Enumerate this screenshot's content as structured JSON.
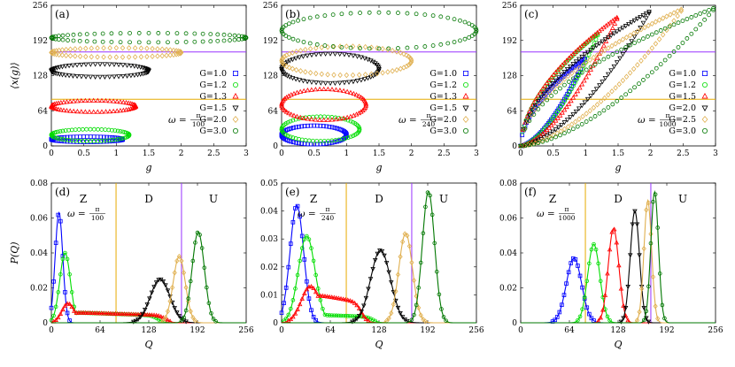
{
  "chart_data": [
    {
      "type": "scatter",
      "panel_label": "(a)",
      "xlabel": "g",
      "ylabel": "⟨x(g)⟩",
      "xlim": [
        0,
        3
      ],
      "ylim": [
        0,
        256
      ],
      "xticks": [
        "0",
        "0.5",
        "1",
        "1.5",
        "2",
        "2.5",
        "3"
      ],
      "yticks": [
        "0",
        "64",
        "128",
        "192",
        "256"
      ],
      "hlines": [
        {
          "y": 85,
          "color": "#e6ab02"
        },
        {
          "y": 171,
          "color": "#9933ff"
        }
      ],
      "omega": {
        "prefix": "ω =",
        "num": "π",
        "den": "100"
      },
      "legend_position": "right",
      "series": [
        {
          "name": "G=1.0",
          "color": "#0000ff",
          "marker": "square",
          "Gmax": 1.0,
          "cx": 0.55,
          "cy": 12,
          "rx": 0.55,
          "ry": 5,
          "lowfrac": 0.5
        },
        {
          "name": "G=1.2",
          "color": "#00dd00",
          "marker": "circle",
          "Gmax": 1.2,
          "cx": 0.6,
          "cy": 20,
          "rx": 0.6,
          "ry": 11,
          "lowfrac": 0.55
        },
        {
          "name": "G=1.3",
          "color": "#ff0000",
          "marker": "triangle",
          "Gmax": 1.3,
          "cx": 0.65,
          "cy": 72,
          "rx": 0.65,
          "ry": 11,
          "lowfrac": 0.5
        },
        {
          "name": "G=1.5",
          "color": "#000000",
          "marker": "triangle-down",
          "Gmax": 1.5,
          "cx": 0.75,
          "cy": 137,
          "rx": 0.75,
          "ry": 13,
          "lowfrac": 0.45
        },
        {
          "name": "G=2.0",
          "color": "#e0b050",
          "marker": "diamond",
          "Gmax": 2.0,
          "cx": 1.0,
          "cy": 170,
          "rx": 1.0,
          "ry": 9,
          "lowfrac": 0.5
        },
        {
          "name": "G=3.0",
          "color": "#007700",
          "marker": "circle",
          "Gmax": 3.0,
          "cx": 1.5,
          "cy": 197,
          "rx": 1.5,
          "ry": 9,
          "lowfrac": 0.5
        }
      ]
    },
    {
      "type": "scatter",
      "panel_label": "(b)",
      "xlabel": "g",
      "ylabel": "",
      "xlim": [
        0,
        3
      ],
      "ylim": [
        0,
        256
      ],
      "xticks": [
        "0",
        "0.5",
        "1",
        "1.5",
        "2",
        "2.5",
        "3"
      ],
      "yticks": [
        "0",
        "64",
        "128",
        "192",
        "256"
      ],
      "hlines": [
        {
          "y": 85,
          "color": "#e6ab02"
        },
        {
          "y": 171,
          "color": "#9933ff"
        }
      ],
      "omega": {
        "prefix": "ω =",
        "num": "π",
        "den": "240"
      },
      "legend_position": "right",
      "series": [
        {
          "name": "G=1.0",
          "color": "#0000ff",
          "marker": "square",
          "Gmax": 1.0,
          "cx": 0.5,
          "cy": 20,
          "rx": 0.5,
          "ry": 18,
          "lowfrac": 0.5
        },
        {
          "name": "G=1.2",
          "color": "#00dd00",
          "marker": "circle",
          "Gmax": 1.2,
          "cx": 0.6,
          "cy": 30,
          "rx": 0.6,
          "ry": 25,
          "lowfrac": 0.45
        },
        {
          "name": "G=1.3",
          "color": "#ff0000",
          "marker": "triangle",
          "Gmax": 1.3,
          "cx": 0.65,
          "cy": 75,
          "rx": 0.65,
          "ry": 30,
          "lowfrac": 0.5
        },
        {
          "name": "G=1.5",
          "color": "#000000",
          "marker": "triangle-down",
          "Gmax": 1.5,
          "cx": 0.75,
          "cy": 140,
          "rx": 0.75,
          "ry": 30,
          "lowfrac": 0.45
        },
        {
          "name": "G=2.0",
          "color": "#e0b050",
          "marker": "diamond",
          "Gmax": 2.0,
          "cx": 1.0,
          "cy": 155,
          "rx": 1.0,
          "ry": 28,
          "lowfrac": 0.5
        },
        {
          "name": "G=3.0",
          "color": "#007700",
          "marker": "circle",
          "Gmax": 3.0,
          "cx": 1.5,
          "cy": 210,
          "rx": 1.5,
          "ry": 35,
          "lowfrac": 0.5
        }
      ]
    },
    {
      "type": "scatter",
      "panel_label": "(c)",
      "xlabel": "g",
      "ylabel": "",
      "xlim": [
        0,
        3
      ],
      "ylim": [
        0,
        256
      ],
      "xticks": [
        "0",
        "0.5",
        "1",
        "1.5",
        "2",
        "2.5",
        "3"
      ],
      "yticks": [
        "0",
        "64",
        "128",
        "192",
        "256"
      ],
      "hlines": [
        {
          "y": 85,
          "color": "#e6ab02"
        },
        {
          "y": 171,
          "color": "#9933ff"
        }
      ],
      "omega": {
        "prefix": "ω =",
        "num": "π",
        "den": "1000"
      },
      "legend_position": "right",
      "series": [
        {
          "name": "G=1.0",
          "color": "#0000ff",
          "marker": "square",
          "Gmax": 1.0,
          "peak": 160
        },
        {
          "name": "G=1.2",
          "color": "#00dd00",
          "marker": "circle",
          "Gmax": 1.2,
          "peak": 205
        },
        {
          "name": "G=1.5",
          "color": "#ff0000",
          "marker": "triangle",
          "Gmax": 1.5,
          "peak": 235
        },
        {
          "name": "G=2.0",
          "color": "#000000",
          "marker": "triangle-down",
          "Gmax": 2.0,
          "peak": 246
        },
        {
          "name": "G=2.5",
          "color": "#e0b050",
          "marker": "diamond",
          "Gmax": 2.5,
          "peak": 250
        },
        {
          "name": "G=3.0",
          "color": "#007700",
          "marker": "circle",
          "Gmax": 3.0,
          "peak": 252
        }
      ]
    },
    {
      "type": "line",
      "panel_label": "(d)",
      "xlabel": "Q",
      "ylabel": "P(Q)",
      "xlim": [
        0,
        256
      ],
      "ylim": [
        0,
        0.08
      ],
      "xticks": [
        "0",
        "64",
        "128",
        "192",
        "256"
      ],
      "yticks": [
        "0",
        "0.02",
        "0.04",
        "0.06",
        "0.08"
      ],
      "vlines": [
        {
          "x": 85,
          "color": "#e6ab02"
        },
        {
          "x": 171,
          "color": "#9933ff"
        }
      ],
      "regions": [
        {
          "label": "Z",
          "x": 42
        },
        {
          "label": "D",
          "x": 128
        },
        {
          "label": "U",
          "x": 213
        }
      ],
      "omega": {
        "prefix": "ω =",
        "num": "π",
        "den": "100"
      },
      "series": [
        {
          "color": "#0000ff",
          "marker": "square",
          "peaks": [
            [
              10,
              0.063,
              5
            ]
          ]
        },
        {
          "color": "#00dd00",
          "marker": "circle",
          "peaks": [
            [
              18,
              0.04,
              7
            ]
          ],
          "plateau": [
            20,
            140,
            0.006
          ]
        },
        {
          "color": "#ff0000",
          "marker": "triangle",
          "peaks": [
            [
              22,
              0.011,
              8
            ]
          ],
          "plateau": [
            20,
            150,
            0.006
          ]
        },
        {
          "color": "#000000",
          "marker": "triangle-down",
          "peaks": [
            [
              143,
              0.025,
              13
            ]
          ]
        },
        {
          "color": "#e0b050",
          "marker": "diamond",
          "peaks": [
            [
              168,
              0.038,
              8
            ]
          ]
        },
        {
          "color": "#007700",
          "marker": "circle",
          "peaks": [
            [
              193,
              0.052,
              8
            ]
          ]
        }
      ]
    },
    {
      "type": "line",
      "panel_label": "(e)",
      "xlabel": "Q",
      "ylabel": "",
      "xlim": [
        0,
        256
      ],
      "ylim": [
        0,
        0.05
      ],
      "xticks": [
        "0",
        "64",
        "128",
        "192",
        "256"
      ],
      "yticks": [
        "0",
        "0.01",
        "0.02",
        "0.03",
        "0.04",
        "0.05"
      ],
      "vlines": [
        {
          "x": 85,
          "color": "#e6ab02"
        },
        {
          "x": 171,
          "color": "#9933ff"
        }
      ],
      "regions": [
        {
          "label": "Z",
          "x": 42
        },
        {
          "label": "D",
          "x": 128
        },
        {
          "label": "U",
          "x": 213
        }
      ],
      "omega": {
        "prefix": "ω =",
        "num": "π",
        "den": "240"
      },
      "series": [
        {
          "color": "#0000ff",
          "marker": "square",
          "peaks": [
            [
              20,
              0.042,
              9
            ]
          ]
        },
        {
          "color": "#00dd00",
          "marker": "circle",
          "peaks": [
            [
              33,
              0.031,
              11
            ]
          ],
          "plateau": [
            30,
            120,
            0.003
          ]
        },
        {
          "color": "#ff0000",
          "marker": "triangle",
          "peaks": [
            [
              38,
              0.013,
              12
            ]
          ],
          "plateau": [
            35,
            105,
            0.0105
          ]
        },
        {
          "color": "#000000",
          "marker": "triangle-down",
          "peaks": [
            [
              130,
              0.026,
              13
            ]
          ]
        },
        {
          "color": "#e0b050",
          "marker": "diamond",
          "peaks": [
            [
              163,
              0.032,
              9
            ]
          ]
        },
        {
          "color": "#007700",
          "marker": "circle",
          "peaks": [
            [
              193,
              0.047,
              8
            ]
          ]
        }
      ]
    },
    {
      "type": "line",
      "panel_label": "(f)",
      "xlabel": "Q",
      "ylabel": "",
      "xlim": [
        0,
        256
      ],
      "ylim": [
        0,
        0.08
      ],
      "xticks": [
        "0",
        "64",
        "128",
        "192",
        "256"
      ],
      "yticks": [
        "0",
        "0.02",
        "0.04",
        "0.06",
        "0.08"
      ],
      "vlines": [
        {
          "x": 85,
          "color": "#e6ab02"
        },
        {
          "x": 171,
          "color": "#9933ff"
        }
      ],
      "regions": [
        {
          "label": "Z",
          "x": 42
        },
        {
          "label": "D",
          "x": 128
        },
        {
          "label": "U",
          "x": 213
        }
      ],
      "omega": {
        "prefix": "ω =",
        "num": "π",
        "den": "1000"
      },
      "series": [
        {
          "color": "#0000ff",
          "marker": "square",
          "peaks": [
            [
              70,
              0.037,
              10
            ]
          ]
        },
        {
          "color": "#00dd00",
          "marker": "circle",
          "peaks": [
            [
              96,
              0.045,
              8
            ]
          ]
        },
        {
          "color": "#ff0000",
          "marker": "triangle",
          "peaks": [
            [
              122,
              0.054,
              7
            ]
          ]
        },
        {
          "color": "#000000",
          "marker": "triangle-down",
          "peaks": [
            [
              150,
              0.064,
              6
            ]
          ]
        },
        {
          "color": "#e0b050",
          "marker": "diamond",
          "peaks": [
            [
              167,
              0.07,
              5
            ]
          ]
        },
        {
          "color": "#007700",
          "marker": "circle",
          "peaks": [
            [
              176,
              0.075,
              5
            ]
          ]
        }
      ]
    }
  ]
}
